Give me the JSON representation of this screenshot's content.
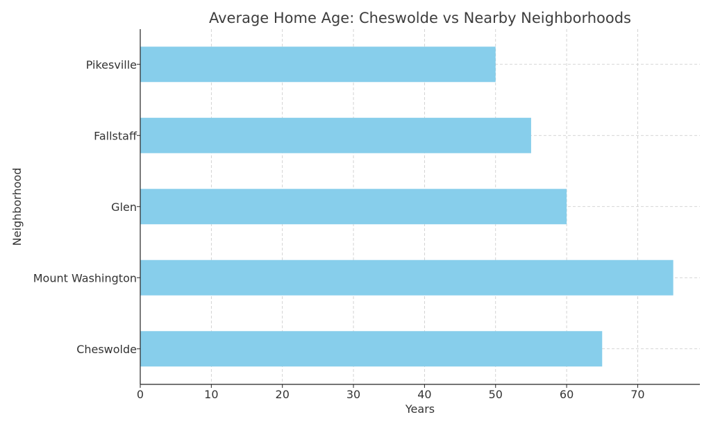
{
  "chart_data": {
    "type": "bar",
    "orientation": "horizontal",
    "title": "Average Home Age: Cheswolde vs Nearby Neighborhoods",
    "xlabel": "Years",
    "ylabel": "Neighborhood",
    "categories": [
      "Cheswolde",
      "Mount Washington",
      "Glen",
      "Fallstaff",
      "Pikesville"
    ],
    "values": [
      65,
      75,
      60,
      55,
      50
    ],
    "xlim": [
      0,
      78.75
    ],
    "xticks": [
      0,
      10,
      20,
      30,
      40,
      50,
      60,
      70
    ],
    "grid": true,
    "bar_color": "#87ceeb"
  }
}
